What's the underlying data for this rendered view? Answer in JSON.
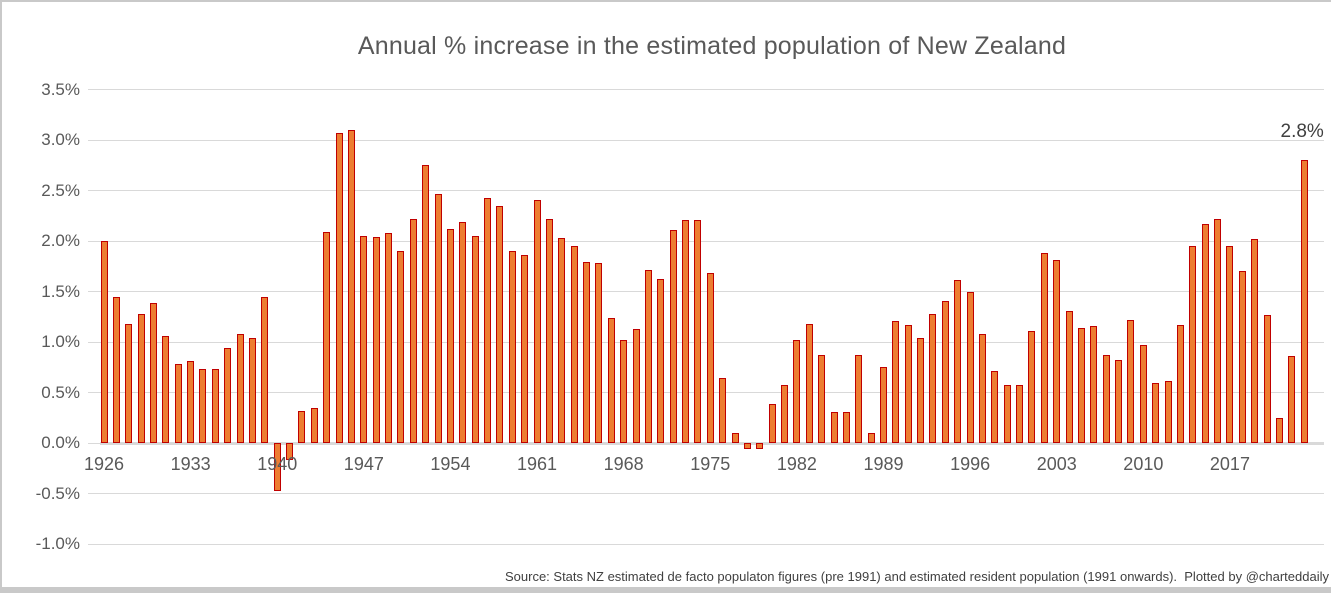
{
  "chart_data": {
    "type": "bar",
    "title": "Annual % increase in the estimated population of New Zealand",
    "footnote": "Source: Stats NZ estimated de facto populaton figures (pre 1991) and estimated resident population (1991 onwards).  Plotted by @charteddaily",
    "xlabel": "",
    "ylabel": "",
    "ylim": [
      -1.0,
      3.5
    ],
    "y_step": 0.5,
    "grid": true,
    "legend": false,
    "y_tick_labels": [
      "3.5%",
      "3.0%",
      "2.5%",
      "2.0%",
      "1.5%",
      "1.0%",
      "0.5%",
      "0.0%",
      "-0.5%",
      "-1.0%"
    ],
    "y_tick_values": [
      3.5,
      3.0,
      2.5,
      2.0,
      1.5,
      1.0,
      0.5,
      0.0,
      -0.5,
      -1.0
    ],
    "x_tick_years": [
      1926,
      1933,
      1940,
      1947,
      1954,
      1961,
      1968,
      1975,
      1982,
      1989,
      1996,
      2003,
      2010,
      2017
    ],
    "categories": [
      1926,
      1927,
      1928,
      1929,
      1930,
      1931,
      1932,
      1933,
      1934,
      1935,
      1936,
      1937,
      1938,
      1939,
      1940,
      1941,
      1942,
      1943,
      1944,
      1945,
      1946,
      1947,
      1948,
      1949,
      1950,
      1951,
      1952,
      1953,
      1954,
      1955,
      1956,
      1957,
      1958,
      1959,
      1960,
      1961,
      1962,
      1963,
      1964,
      1965,
      1966,
      1967,
      1968,
      1969,
      1970,
      1971,
      1972,
      1973,
      1974,
      1975,
      1976,
      1977,
      1978,
      1979,
      1980,
      1981,
      1982,
      1983,
      1984,
      1985,
      1986,
      1987,
      1988,
      1989,
      1990,
      1991,
      1992,
      1993,
      1994,
      1995,
      1996,
      1997,
      1998,
      1999,
      2000,
      2001,
      2002,
      2003,
      2004,
      2005,
      2006,
      2007,
      2008,
      2009,
      2010,
      2011,
      2012,
      2013,
      2014,
      2015,
      2016,
      2017,
      2018,
      2019,
      2020,
      2021,
      2022,
      2023
    ],
    "values": [
      2.0,
      1.45,
      1.18,
      1.28,
      1.39,
      1.06,
      0.78,
      0.81,
      0.73,
      0.73,
      0.94,
      1.08,
      1.04,
      1.45,
      -0.48,
      -0.17,
      0.32,
      0.35,
      2.09,
      3.07,
      3.1,
      2.05,
      2.04,
      2.08,
      1.9,
      2.22,
      2.75,
      2.47,
      2.12,
      2.19,
      2.05,
      2.43,
      2.35,
      1.9,
      1.86,
      2.41,
      2.22,
      2.03,
      1.95,
      1.79,
      1.78,
      1.24,
      1.02,
      1.13,
      1.71,
      1.62,
      2.11,
      2.21,
      2.21,
      1.68,
      0.64,
      0.1,
      -0.06,
      -0.06,
      0.39,
      0.57,
      1.02,
      1.18,
      0.87,
      0.31,
      0.31,
      0.87,
      0.1,
      0.75,
      1.21,
      1.17,
      1.04,
      1.28,
      1.41,
      1.61,
      1.5,
      1.08,
      0.71,
      0.57,
      0.57,
      1.11,
      1.88,
      1.81,
      1.31,
      1.14,
      1.16,
      0.87,
      0.82,
      1.22,
      0.97,
      0.59,
      0.61,
      1.17,
      1.95,
      2.17,
      2.22,
      1.95,
      1.7,
      2.02,
      1.27,
      0.25,
      0.86,
      2.8
    ],
    "data_label": {
      "year": 2023,
      "text": "2.8%"
    },
    "colors": {
      "bar_fill": "#ED7D31",
      "bar_border": "#C00000",
      "grid": "#D9D9D9",
      "axis_text": "#595959",
      "title_text": "#595959",
      "annotation_text": "#404040",
      "footnote_text": "#404040",
      "frame": "#C9C9C9",
      "bottom_strip": "#C9C9C9"
    }
  }
}
